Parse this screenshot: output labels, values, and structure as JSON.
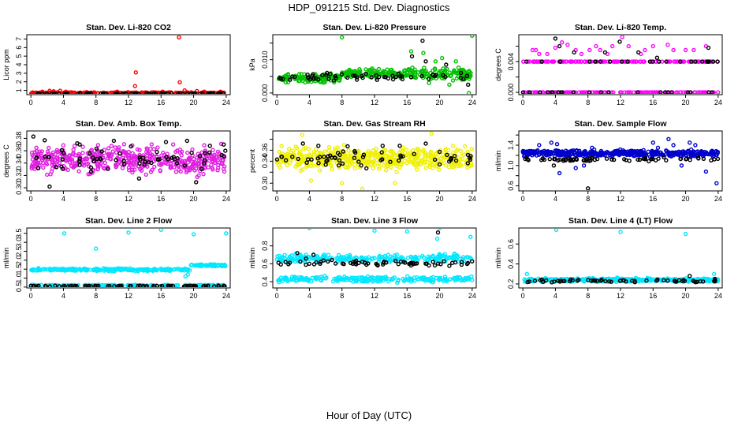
{
  "chart_data": {
    "type": "scatter",
    "title": "HDP_091215  Std. Dev. Diagnostics",
    "xlabel": "Hour of Day (UTC)",
    "x_ticks": [
      0,
      4,
      8,
      12,
      16,
      20,
      24
    ],
    "xlim": [
      -0.5,
      24.5
    ],
    "panels": [
      {
        "id": "co2",
        "title": "Stan. Dev. Li-820 CO2",
        "ylabel": "Licor ppm",
        "ylim": [
          0.5,
          7.5
        ],
        "yticks": [
          1,
          2,
          3,
          4,
          5,
          6,
          7
        ],
        "ytick_labels": [
          "1",
          "2",
          "3",
          "4",
          "5",
          "6",
          "7"
        ],
        "color": "#ff0000",
        "bands": [
          {
            "x": [
              0,
              24
            ],
            "center": 0.7,
            "spread": 0.12,
            "count": 260
          }
        ],
        "black_bands": [
          {
            "x": [
              0,
              24
            ],
            "center": 0.62,
            "spread": 0.06,
            "count": 70
          }
        ],
        "points": [
          [
            18.2,
            7.2
          ],
          [
            18.3,
            1.95
          ],
          [
            12.9,
            3.1
          ],
          [
            12.8,
            1.5
          ],
          [
            2.3,
            0.95
          ],
          [
            3.6,
            0.95
          ],
          [
            2.8,
            0.9
          ],
          [
            4.3,
            0.85
          ],
          [
            20.4,
            0.92
          ],
          [
            18.9,
            1.0
          ],
          [
            21.3,
            0.85
          ],
          [
            1.4,
            0.85
          ],
          [
            23.3,
            0.85
          ],
          [
            10.6,
            0.85
          ],
          [
            16.2,
            0.85
          ]
        ],
        "black_points": []
      },
      {
        "id": "pressure",
        "title": "Stan. Dev. Li-820 Pressure",
        "ylabel": "kPa",
        "ylim": [
          -0.0005,
          0.0175
        ],
        "yticks": [
          0.0,
          0.005,
          0.01,
          0.015
        ],
        "ytick_labels": [
          "0.000",
          "",
          "0.010",
          ""
        ],
        "color": "#00c000",
        "bands": [
          {
            "x": [
              0,
              8
            ],
            "center": 0.0045,
            "spread": 0.0018,
            "count": 120
          },
          {
            "x": [
              8,
              16
            ],
            "center": 0.0058,
            "spread": 0.0018,
            "count": 120
          },
          {
            "x": [
              16,
              24
            ],
            "center": 0.0055,
            "spread": 0.0028,
            "count": 120
          }
        ],
        "black_bands": [
          {
            "x": [
              0,
              24
            ],
            "center": 0.0048,
            "spread": 0.0018,
            "count": 60
          }
        ],
        "points": [
          [
            8.0,
            0.0167
          ],
          [
            24.0,
            0.0172
          ],
          [
            16.5,
            0.0125
          ],
          [
            18.0,
            0.012
          ],
          [
            19.5,
            0.0095
          ],
          [
            20.3,
            0.0105
          ],
          [
            22.0,
            0.0095
          ],
          [
            23.6,
            0.0
          ],
          [
            18.7,
            0.003
          ],
          [
            21.2,
            0.0025
          ]
        ],
        "black_points": [
          [
            17.9,
            0.0157
          ],
          [
            16.6,
            0.011
          ],
          [
            18.3,
            0.0095
          ],
          [
            20.8,
            0.0085
          ],
          [
            23.5,
            0.0025
          ]
        ]
      },
      {
        "id": "temp",
        "title": "Stan. Dev. Li-820 Temp.",
        "ylabel": "degrees C",
        "ylim": [
          -0.0003,
          0.0075
        ],
        "yticks": [
          0.0,
          0.002,
          0.004,
          0.006
        ],
        "ytick_labels": [
          "0.000",
          "",
          "0.004",
          ""
        ],
        "color": "#ff00ff",
        "bands": [
          {
            "x": [
              0,
              24
            ],
            "center": 0.004,
            "spread": 0.0,
            "count": 150
          },
          {
            "x": [
              0,
              24
            ],
            "center": 0.0,
            "spread": 0.0,
            "count": 150
          }
        ],
        "black_bands": [
          {
            "x": [
              0,
              24
            ],
            "center": 0.004,
            "spread": 0.0,
            "count": 25
          },
          {
            "x": [
              0,
              24
            ],
            "center": 0.0,
            "spread": 0.0,
            "count": 25
          }
        ],
        "points": [
          [
            1.2,
            0.0055
          ],
          [
            1.6,
            0.0055
          ],
          [
            2.0,
            0.005
          ],
          [
            4.8,
            0.0065
          ],
          [
            6.5,
            0.0055
          ],
          [
            8.2,
            0.0055
          ],
          [
            9.0,
            0.006
          ],
          [
            9.5,
            0.0055
          ],
          [
            10.4,
            0.005
          ],
          [
            11.0,
            0.006
          ],
          [
            12.2,
            0.0072
          ],
          [
            13.0,
            0.006
          ],
          [
            14.5,
            0.005
          ],
          [
            15.0,
            0.0055
          ],
          [
            17.8,
            0.0062
          ],
          [
            18.5,
            0.0055
          ],
          [
            20.0,
            0.0055
          ],
          [
            21.0,
            0.0055
          ],
          [
            3.0,
            0.005
          ],
          [
            5.5,
            0.0062
          ],
          [
            7.2,
            0.005
          ],
          [
            16.0,
            0.006
          ],
          [
            22.5,
            0.006
          ],
          [
            4.0,
            0.0058
          ]
        ],
        "black_points": [
          [
            4.0,
            0.007
          ],
          [
            4.5,
            0.006
          ],
          [
            6.3,
            0.0052
          ],
          [
            10.1,
            0.0052
          ],
          [
            11.9,
            0.0066
          ],
          [
            14.2,
            0.0052
          ],
          [
            22.8,
            0.0058
          ],
          [
            16.5,
            0.0045
          ]
        ]
      },
      {
        "id": "amb_box",
        "title": "Stan. Dev. Amb. Box Temp.",
        "ylabel": "degrees C",
        "ylim": [
          0.295,
          0.392
        ],
        "yticks": [
          0.3,
          0.32,
          0.34,
          0.36,
          0.38
        ],
        "ytick_labels": [
          "0.30",
          "0.32",
          "0.34",
          "0.36",
          "0.38"
        ],
        "color": "#e020e0",
        "bands": [
          {
            "x": [
              0,
              24
            ],
            "center": 0.345,
            "spread": 0.032,
            "count": 480
          }
        ],
        "black_bands": [
          {
            "x": [
              0,
              24
            ],
            "center": 0.345,
            "spread": 0.025,
            "count": 55
          }
        ],
        "points": [],
        "black_points": [
          [
            0.3,
            0.383
          ],
          [
            1.7,
            0.377
          ],
          [
            3.8,
            0.361
          ],
          [
            5.7,
            0.372
          ],
          [
            6.0,
            0.37
          ],
          [
            7.4,
            0.326
          ],
          [
            10.2,
            0.376
          ],
          [
            12.3,
            0.367
          ],
          [
            13.3,
            0.315
          ],
          [
            16.6,
            0.374
          ],
          [
            19.2,
            0.376
          ],
          [
            20.3,
            0.309
          ],
          [
            22.0,
            0.368
          ],
          [
            23.7,
            0.37
          ],
          [
            23.9,
            0.36
          ],
          [
            2.3,
            0.302
          ]
        ]
      },
      {
        "id": "rh",
        "title": "Stan. Dev. Gas Stream RH",
        "ylabel": "percent",
        "ylim": [
          0.286,
          0.395
        ],
        "yticks": [
          0.3,
          0.32,
          0.34,
          0.36,
          0.38
        ],
        "ytick_labels": [
          "0.30",
          "",
          "0.34",
          "0.36",
          ""
        ],
        "color": "#f0f000",
        "bands": [
          {
            "x": [
              0,
              24
            ],
            "center": 0.345,
            "spread": 0.028,
            "count": 480
          }
        ],
        "black_bands": [
          {
            "x": [
              0,
              24
            ],
            "center": 0.345,
            "spread": 0.018,
            "count": 55
          }
        ],
        "points": [
          [
            3.1,
            0.388
          ],
          [
            19.0,
            0.39
          ],
          [
            4.2,
            0.305
          ],
          [
            10.5,
            0.29
          ],
          [
            8.0,
            0.3
          ],
          [
            14.5,
            0.3
          ]
        ],
        "black_points": [
          [
            3.2,
            0.372
          ],
          [
            5.1,
            0.368
          ],
          [
            7.5,
            0.355
          ],
          [
            8.7,
            0.367
          ],
          [
            11.0,
            0.327
          ],
          [
            13.0,
            0.368
          ],
          [
            15.1,
            0.368
          ],
          [
            18.3,
            0.372
          ],
          [
            20.0,
            0.357
          ],
          [
            23.7,
            0.346
          ]
        ]
      },
      {
        "id": "sample_flow",
        "title": "Stan. Dev. Sample Flow",
        "ylabel": "ml/min",
        "ylim": [
          0.5,
          1.68
        ],
        "yticks": [
          0.6,
          0.8,
          1.0,
          1.2,
          1.4,
          1.6
        ],
        "ytick_labels": [
          "0.6",
          "",
          "1.0",
          "",
          "1.4",
          ""
        ],
        "color": "#0000cc",
        "bands": [
          {
            "x": [
              0,
              24
            ],
            "center": 1.24,
            "spread": 0.09,
            "count": 460
          }
        ],
        "black_bands": [
          {
            "x": [
              0,
              24
            ],
            "center": 1.12,
            "spread": 0.05,
            "count": 70
          }
        ],
        "points": [
          [
            3.5,
            1.45
          ],
          [
            4.2,
            1.42
          ],
          [
            2.0,
            1.4
          ],
          [
            8.5,
            1.35
          ],
          [
            16.6,
            1.35
          ],
          [
            17.9,
            1.52
          ],
          [
            18.5,
            1.4
          ],
          [
            20.5,
            1.45
          ],
          [
            21.2,
            1.4
          ],
          [
            22.5,
            0.88
          ],
          [
            23.8,
            0.65
          ],
          [
            6.5,
            0.95
          ],
          [
            4.5,
            0.85
          ],
          [
            7.5,
            1.0
          ],
          [
            16.0,
            1.45
          ],
          [
            19.5,
            1.0
          ]
        ],
        "black_points": [
          [
            8.0,
            0.55
          ],
          [
            3.8,
            1.0
          ]
        ]
      },
      {
        "id": "line2",
        "title": "Stan. Dev. Line 2 Flow",
        "ylabel": "ml/min",
        "ylim": [
          0.45,
          3.8
        ],
        "yticks": [
          0.5,
          1.0,
          1.5,
          2.0,
          2.5,
          3.0,
          3.5
        ],
        "ytick_labels": [
          "0.5",
          "1.0",
          "1.5",
          "2.0",
          "2.5",
          "3.0",
          "3.5"
        ],
        "color": "#00e8ff",
        "bands": [
          {
            "x": [
              0,
              19.6
            ],
            "center": 1.47,
            "spread": 0.1,
            "count": 260
          },
          {
            "x": [
              19.6,
              24
            ],
            "center": 1.72,
            "spread": 0.1,
            "count": 60
          },
          {
            "x": [
              0,
              24
            ],
            "center": 0.6,
            "spread": 0.03,
            "count": 160
          }
        ],
        "black_bands": [
          {
            "x": [
              0,
              24
            ],
            "center": 0.55,
            "spread": 0.04,
            "count": 90
          }
        ],
        "points": [
          [
            4.1,
            3.5
          ],
          [
            16.0,
            3.7
          ],
          [
            20.0,
            3.45
          ],
          [
            24.0,
            3.5
          ],
          [
            8.0,
            2.65
          ],
          [
            12.0,
            3.55
          ],
          [
            19.0,
            1.1
          ],
          [
            19.3,
            1.2
          ]
        ],
        "black_points": []
      },
      {
        "id": "line3",
        "title": "Stan. Dev. Line 3 Flow",
        "ylabel": "ml/min",
        "ylim": [
          0.33,
          1.0
        ],
        "yticks": [
          0.4,
          0.6,
          0.8
        ],
        "ytick_labels": [
          "0.4",
          "0.6",
          "0.8"
        ],
        "color": "#00e8ff",
        "bands": [
          {
            "x": [
              0,
              24
            ],
            "center": 0.66,
            "spread": 0.06,
            "count": 230
          },
          {
            "x": [
              0,
              24
            ],
            "center": 0.43,
            "spread": 0.05,
            "count": 230
          }
        ],
        "black_bands": [
          {
            "x": [
              0,
              24
            ],
            "center": 0.61,
            "spread": 0.05,
            "count": 70
          }
        ],
        "points": [
          [
            4.0,
            1.0
          ],
          [
            12.0,
            0.97
          ],
          [
            16.0,
            0.96
          ],
          [
            20.0,
            1.0
          ],
          [
            23.8,
            0.9
          ],
          [
            19.7,
            0.88
          ]
        ],
        "black_points": [
          [
            19.8,
            0.95
          ],
          [
            2.5,
            0.72
          ],
          [
            4.5,
            0.7
          ]
        ]
      },
      {
        "id": "line4",
        "title": "Stan. Dev. Line 4 (LT) Flow",
        "ylabel": "ml/min",
        "ylim": [
          0.16,
          0.76
        ],
        "yticks": [
          0.2,
          0.4,
          0.6
        ],
        "ytick_labels": [
          "0.2",
          "0.4",
          "0.6"
        ],
        "color": "#00e8ff",
        "bands": [
          {
            "x": [
              0,
              24
            ],
            "center": 0.24,
            "spread": 0.025,
            "count": 380
          }
        ],
        "black_bands": [
          {
            "x": [
              0,
              24
            ],
            "center": 0.23,
            "spread": 0.02,
            "count": 60
          }
        ],
        "points": [
          [
            4.1,
            0.74
          ],
          [
            12.0,
            0.72
          ],
          [
            20.0,
            0.7
          ],
          [
            23.5,
            0.3
          ],
          [
            0.5,
            0.3
          ]
        ],
        "black_points": [
          [
            20.5,
            0.28
          ],
          [
            23.6,
            0.25
          ]
        ]
      }
    ]
  }
}
